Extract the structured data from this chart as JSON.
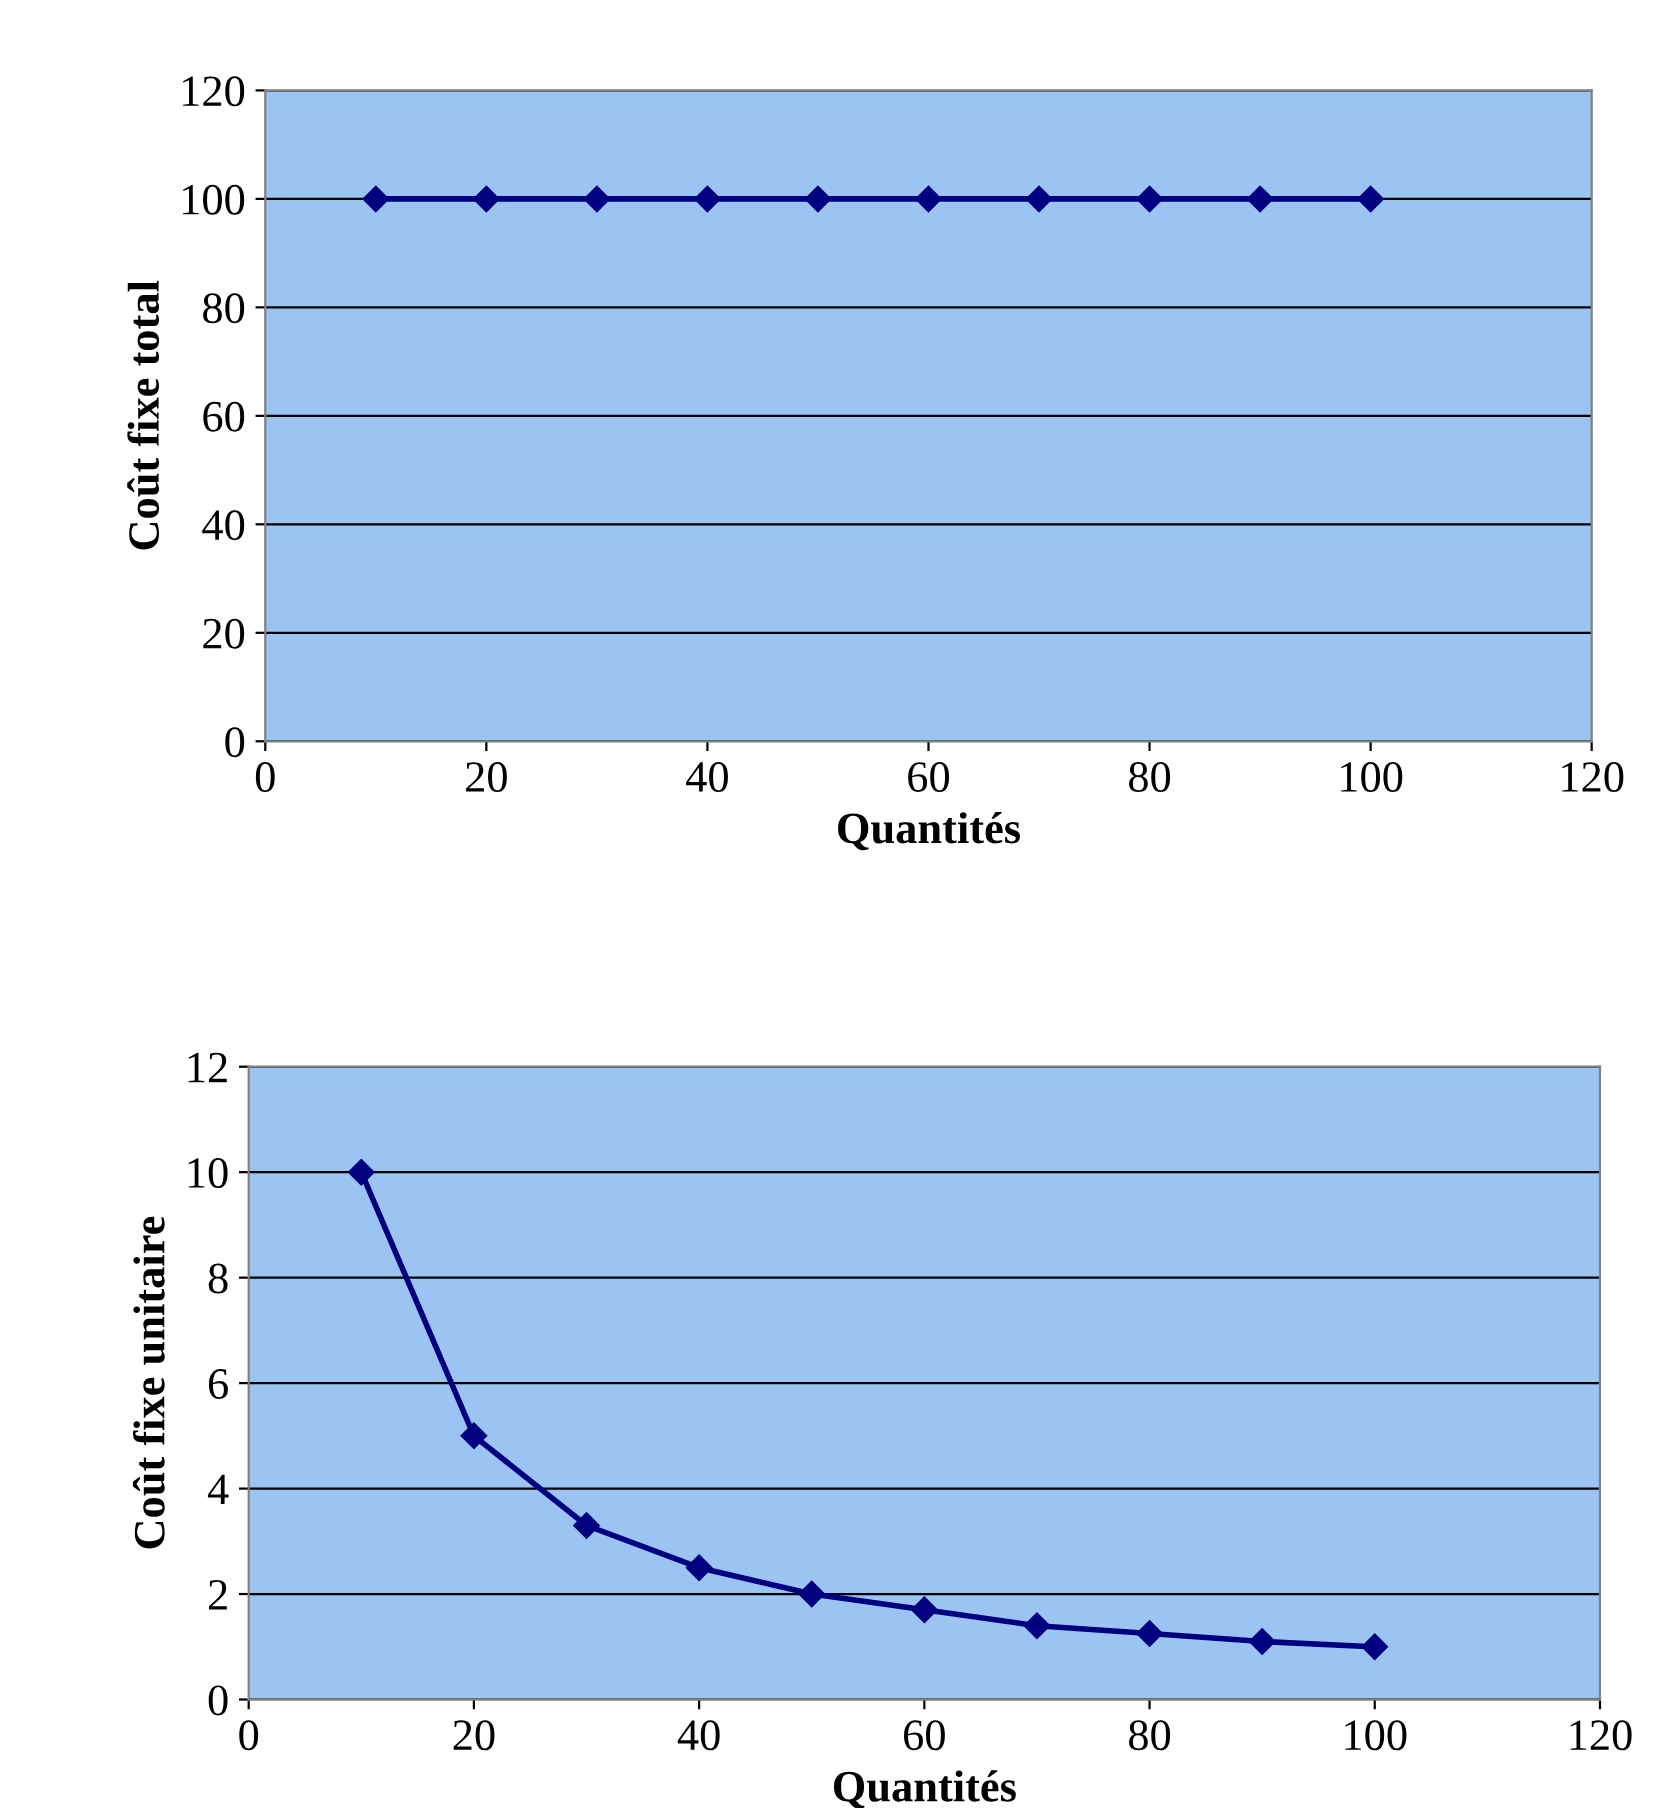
{
  "chart_data": [
    {
      "type": "line",
      "xlabel": "Quantités",
      "ylabel": "Coût fixe total",
      "x": [
        10,
        20,
        30,
        40,
        50,
        60,
        70,
        80,
        90,
        100
      ],
      "series": [
        {
          "color": "#000080",
          "values": [
            100,
            100,
            100,
            100,
            100,
            100,
            100,
            100,
            100,
            100
          ]
        }
      ],
      "xlim": [
        0,
        120
      ],
      "xticks": [
        0,
        20,
        40,
        60,
        80,
        100,
        120
      ],
      "ylim": [
        0,
        120
      ],
      "yticks": [
        0,
        20,
        40,
        60,
        80,
        100,
        120
      ],
      "grid": "y",
      "marker": "diamond",
      "line_style": "solid",
      "legend": false
    },
    {
      "type": "line",
      "xlabel": "Quantités",
      "ylabel": "Coût fixe unitaire",
      "x": [
        10,
        20,
        30,
        40,
        50,
        60,
        70,
        80,
        90,
        100
      ],
      "series": [
        {
          "color": "#000080",
          "values": [
            10,
            5,
            3.3,
            2.5,
            2,
            1.7,
            1.4,
            1.25,
            1.1,
            1
          ]
        }
      ],
      "xlim": [
        0,
        120
      ],
      "xticks": [
        0,
        20,
        40,
        60,
        80,
        100,
        120
      ],
      "ylim": [
        0,
        12
      ],
      "yticks": [
        0,
        2,
        4,
        6,
        8,
        10,
        12
      ],
      "grid": "y",
      "marker": "diamond",
      "line_style": "solid",
      "legend": false
    }
  ]
}
